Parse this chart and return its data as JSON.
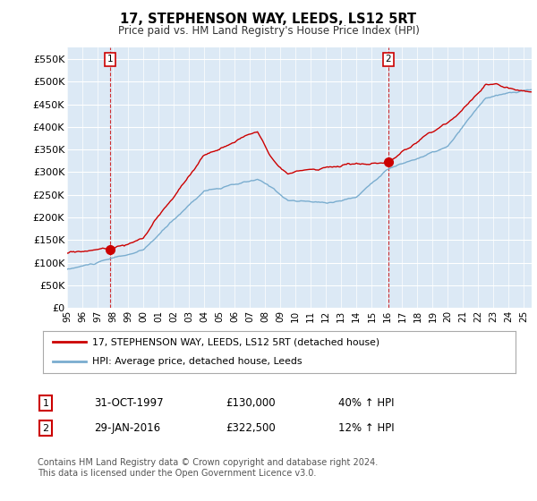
{
  "title": "17, STEPHENSON WAY, LEEDS, LS12 5RT",
  "subtitle": "Price paid vs. HM Land Registry's House Price Index (HPI)",
  "ylabel_ticks": [
    "£0",
    "£50K",
    "£100K",
    "£150K",
    "£200K",
    "£250K",
    "£300K",
    "£350K",
    "£400K",
    "£450K",
    "£500K",
    "£550K"
  ],
  "ytick_vals": [
    0,
    50000,
    100000,
    150000,
    200000,
    250000,
    300000,
    350000,
    400000,
    450000,
    500000,
    550000
  ],
  "ylim": [
    0,
    575000
  ],
  "xlim_start": 1995.0,
  "xlim_end": 2025.5,
  "sale1_x": 1997.83,
  "sale1_y": 130000,
  "sale2_x": 2016.08,
  "sale2_y": 322500,
  "legend_line1": "17, STEPHENSON WAY, LEEDS, LS12 5RT (detached house)",
  "legend_line2": "HPI: Average price, detached house, Leeds",
  "table_row1": [
    "1",
    "31-OCT-1997",
    "£130,000",
    "40% ↑ HPI"
  ],
  "table_row2": [
    "2",
    "29-JAN-2016",
    "£322,500",
    "12% ↑ HPI"
  ],
  "footer": "Contains HM Land Registry data © Crown copyright and database right 2024.\nThis data is licensed under the Open Government Licence v3.0.",
  "red_color": "#cc0000",
  "blue_color": "#7aadcf",
  "vline_color": "#cc0000",
  "bg_color": "#ffffff",
  "plot_bg": "#dce9f5"
}
